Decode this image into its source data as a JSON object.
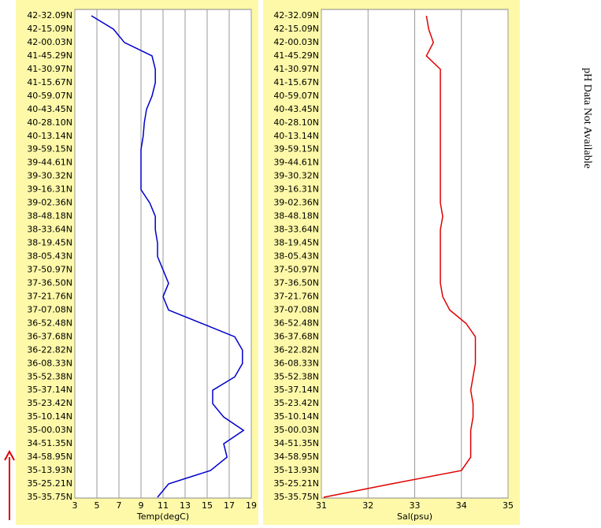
{
  "chart_data": [
    {
      "type": "line",
      "x_label": "Temp(degC)",
      "xlim": [
        3,
        19
      ],
      "xticks": [
        3,
        5,
        7,
        9,
        11,
        13,
        15,
        17,
        19
      ],
      "grid": true,
      "categories": [
        "42-32.09N",
        "42-15.09N",
        "42-00.03N",
        "41-45.29N",
        "41-30.97N",
        "41-15.67N",
        "40-59.07N",
        "40-43.45N",
        "40-28.10N",
        "40-13.14N",
        "39-59.15N",
        "39-44.61N",
        "39-30.32N",
        "39-16.31N",
        "39-02.36N",
        "38-48.18N",
        "38-33.64N",
        "38-19.45N",
        "38-05.43N",
        "37-50.97N",
        "37-36.50N",
        "37-21.76N",
        "37-07.08N",
        "36-52.48N",
        "36-37.68N",
        "36-22.82N",
        "36-08.33N",
        "35-52.38N",
        "35-37.14N",
        "35-23.42N",
        "35-10.14N",
        "35-00.03N",
        "34-51.35N",
        "34-58.95N",
        "35-13.93N",
        "35-25.21N",
        "35-35.75N"
      ],
      "series": [
        {
          "name": "Temp",
          "color": "#0000cc",
          "values": [
            4.5,
            6.5,
            7.5,
            10.0,
            10.3,
            10.3,
            10.0,
            9.5,
            9.3,
            9.2,
            9.0,
            9.0,
            9.0,
            9.0,
            9.8,
            10.3,
            10.3,
            10.5,
            10.5,
            11.0,
            11.5,
            11.0,
            11.5,
            14.5,
            17.5,
            18.2,
            18.2,
            17.5,
            15.5,
            15.5,
            16.5,
            18.3,
            16.5,
            16.8,
            15.3,
            11.5,
            10.5
          ]
        }
      ]
    },
    {
      "type": "line",
      "x_label": "Sal(psu)",
      "xlim": [
        31,
        35
      ],
      "xticks": [
        31,
        32,
        33,
        34,
        35
      ],
      "grid": true,
      "categories": [
        "42-32.09N",
        "42-15.09N",
        "42-00.03N",
        "41-45.29N",
        "41-30.97N",
        "41-15.67N",
        "40-59.07N",
        "40-43.45N",
        "40-28.10N",
        "40-13.14N",
        "39-59.15N",
        "39-44.61N",
        "39-30.32N",
        "39-16.31N",
        "39-02.36N",
        "38-48.18N",
        "38-33.64N",
        "38-19.45N",
        "38-05.43N",
        "37-50.97N",
        "37-36.50N",
        "37-21.76N",
        "37-07.08N",
        "36-52.48N",
        "36-37.68N",
        "36-22.82N",
        "36-08.33N",
        "35-52.38N",
        "35-37.14N",
        "35-23.42N",
        "35-10.14N",
        "35-00.03N",
        "34-51.35N",
        "34-58.95N",
        "35-13.93N",
        "35-25.21N",
        "35-35.75N"
      ],
      "series": [
        {
          "name": "Sal",
          "color": "#e00000",
          "values": [
            33.25,
            33.3,
            33.4,
            33.25,
            33.55,
            33.55,
            33.55,
            33.55,
            33.55,
            33.55,
            33.55,
            33.55,
            33.55,
            33.55,
            33.55,
            33.6,
            33.55,
            33.55,
            33.55,
            33.55,
            33.55,
            33.6,
            33.75,
            34.1,
            34.3,
            34.3,
            34.3,
            34.25,
            34.2,
            34.25,
            34.25,
            34.2,
            34.2,
            34.2,
            34.0,
            32.5,
            31.05
          ]
        }
      ]
    }
  ],
  "note": "pH Data Not Available"
}
